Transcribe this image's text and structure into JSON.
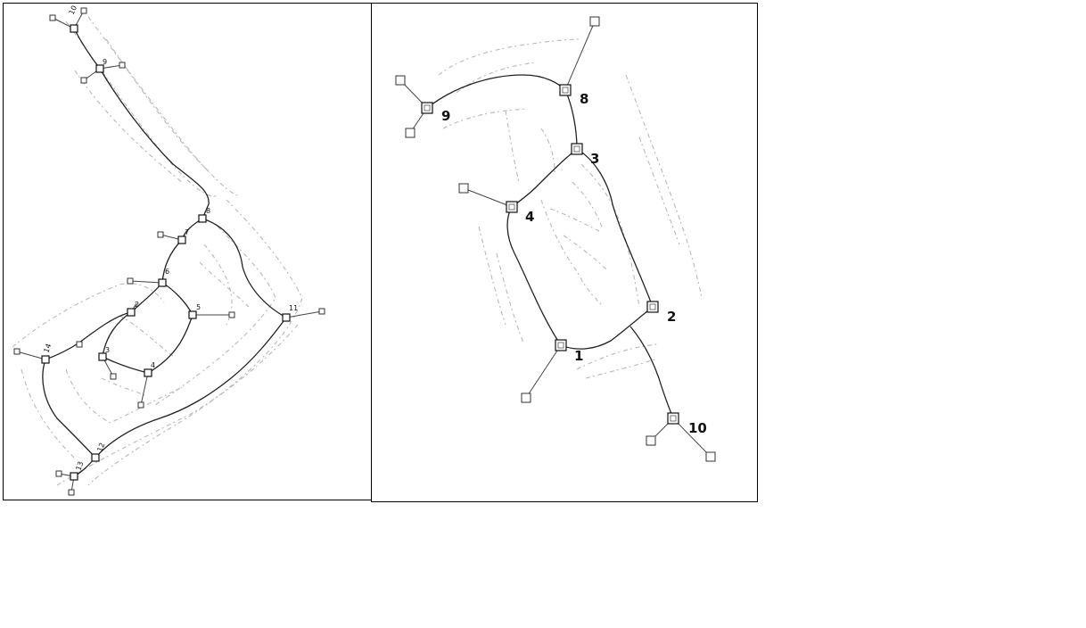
{
  "left_graph": {
    "labels": {
      "n1": "1",
      "n2": "2",
      "n3": "3",
      "n4": "4",
      "n5": "5",
      "n6": "6",
      "n7": "7",
      "n8": "8",
      "n9": "9",
      "n10": "10",
      "n11": "11",
      "n12": "12",
      "n13": "13",
      "n14": "14"
    }
  },
  "right_graph": {
    "labels": {
      "n1": "1",
      "n2": "2",
      "n3": "3",
      "n4": "4",
      "n8": "8",
      "n9": "9",
      "n10": "10"
    }
  }
}
